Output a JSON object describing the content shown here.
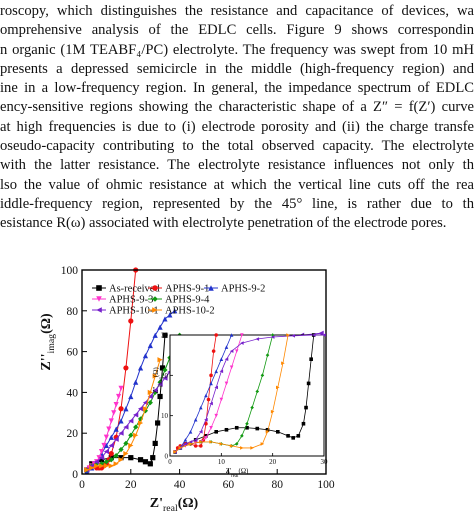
{
  "paragraph": {
    "lines": [
      "roscopy, which distinguishes the resistance and capacitance of devices, wa",
      "omprehensive analysis of the EDLC cells. Figure 9 shows correspondin",
      "n organic (1M TEABF₄/PC) electrolyte. The frequency was swept from 10 mH",
      "presents a depressed semicircle in the middle (high-frequency region) and",
      "ine in a low-frequency region. In general, the impedance spectrum of EDLC",
      "ency-sensitive regions showing the characteristic shape of a Z″ = f(Z′) curve",
      "at high frequencies is due to (i) electrode porosity and (ii) the charge transfe",
      "oseudo-capacity contributing to the total observed capacity. The electrolyte",
      "with the latter resistance. The electrolyte resistance influences not only th",
      "lso the value of ohmic resistance at which the vertical line cuts off the rea",
      "iddle-frequency region, represented by the 45° line, is rather due to th",
      "esistance R(ω) associated with electrolyte penetration of the electrode pores."
    ]
  },
  "chart_data": [
    {
      "type": "scatter",
      "xlabel": "Z'real(Ω)",
      "ylabel": "Z''imag(Ω)",
      "xlim": [
        0,
        100
      ],
      "ylim": [
        0,
        100
      ],
      "x_ticks": [
        "0",
        "20",
        "40",
        "60",
        "80",
        "100"
      ],
      "y_ticks": [
        "0",
        "20",
        "40",
        "60",
        "80",
        "100"
      ],
      "legend_placement": "top-left",
      "series": [
        {
          "name": "As-received",
          "color": "#000000",
          "marker": "square",
          "x": [
            2,
            4,
            8,
            12,
            16,
            20,
            24,
            26,
            28,
            29,
            30,
            31,
            32,
            33,
            34
          ],
          "y": [
            2,
            5,
            7,
            8,
            8,
            8,
            7,
            6,
            5,
            8,
            15,
            25,
            38,
            52,
            68
          ]
        },
        {
          "name": "APHS-9-1",
          "color": "#ee1111",
          "marker": "circle",
          "x": [
            2,
            3,
            4,
            5,
            6,
            7,
            8,
            9,
            10,
            11,
            12,
            14,
            16,
            18,
            20,
            22
          ],
          "y": [
            2,
            3,
            4,
            4,
            3,
            3,
            3,
            4,
            5,
            7,
            10,
            18,
            32,
            52,
            75,
            100
          ]
        },
        {
          "name": "APHS-9-2",
          "color": "#2233cc",
          "marker": "triangle-up",
          "x": [
            2,
            4,
            6,
            8,
            10,
            12,
            14,
            16,
            18,
            20,
            22,
            24,
            26,
            28,
            30,
            32,
            34,
            36,
            38
          ],
          "y": [
            1,
            3,
            6,
            10,
            14,
            18,
            22,
            26,
            32,
            38,
            45,
            52,
            58,
            63,
            68,
            72,
            76,
            78,
            80
          ]
        },
        {
          "name": "APHS-9-3",
          "color": "#ff33cc",
          "marker": "triangle-down",
          "x": [
            2,
            3,
            4,
            5,
            6,
            7,
            8,
            9,
            10,
            11,
            12,
            13,
            14,
            15,
            16
          ],
          "y": [
            2,
            3,
            4,
            5,
            6,
            8,
            11,
            14,
            18,
            22,
            26,
            30,
            34,
            38,
            42
          ]
        },
        {
          "name": "APHS-9-4",
          "color": "#119911",
          "marker": "diamond",
          "x": [
            2,
            4,
            6,
            8,
            10,
            12,
            14,
            16,
            18,
            20,
            22,
            24,
            26,
            28,
            30,
            32,
            34,
            36,
            38,
            40
          ],
          "y": [
            2,
            4,
            5,
            5,
            6,
            7,
            9,
            12,
            15,
            19,
            23,
            27,
            31,
            35,
            40,
            45,
            51,
            57,
            63,
            68
          ]
        },
        {
          "name": "APHS-10-1",
          "color": "#7722cc",
          "marker": "triangle-left",
          "x": [
            2,
            4,
            6,
            8,
            10,
            12,
            14,
            16,
            18,
            20,
            22,
            24,
            26,
            28,
            30,
            32,
            34,
            36,
            40,
            50,
            60,
            70,
            80,
            90,
            98
          ],
          "y": [
            2,
            4,
            6,
            8,
            11,
            14,
            17,
            20,
            23,
            26,
            29,
            32,
            35,
            38,
            41,
            44,
            47,
            50,
            53,
            58,
            62,
            65,
            67,
            68,
            69
          ]
        },
        {
          "name": "APHS-10-2",
          "color": "#ff8800",
          "marker": "triangle-right",
          "x": [
            2,
            4,
            6,
            8,
            10,
            12,
            14,
            16,
            18,
            20,
            22,
            24,
            26,
            28,
            30,
            32
          ],
          "y": [
            2,
            3,
            4,
            4,
            4,
            4,
            5,
            7,
            10,
            14,
            19,
            25,
            32,
            40,
            48,
            56
          ]
        }
      ]
    },
    {
      "type": "scatter",
      "inset": true,
      "xlabel": "Z'real(Ω)",
      "ylabel": "Z''imag(Ω)",
      "xlim": [
        0,
        30
      ],
      "ylim": [
        0,
        30
      ],
      "x_ticks": [
        "0",
        "10",
        "20",
        "30"
      ],
      "y_ticks": [
        "0",
        "10",
        "20",
        "30"
      ],
      "series": [
        {
          "name": "As-received",
          "color": "#000000",
          "x": [
            1,
            2,
            3,
            5,
            7,
            9,
            11,
            13,
            15,
            17,
            19,
            21,
            23,
            24,
            25,
            26,
            26.5,
            27,
            27.5,
            28
          ],
          "y": [
            1,
            2,
            3,
            4,
            5,
            6,
            6.5,
            7,
            7,
            6.8,
            6.5,
            6,
            5,
            4.5,
            5,
            8,
            12,
            18,
            24,
            30
          ]
        },
        {
          "name": "APHS-9-1",
          "color": "#ee1111",
          "x": [
            1,
            1.5,
            2,
            3,
            4,
            5,
            6,
            6.5,
            7,
            7.5,
            8,
            8.5,
            9
          ],
          "y": [
            1,
            2,
            2.5,
            3,
            3,
            2.5,
            2.5,
            4,
            8,
            14,
            20,
            26,
            30
          ]
        },
        {
          "name": "APHS-9-2",
          "color": "#2233cc",
          "x": [
            1,
            2,
            3,
            4,
            5,
            6,
            7,
            8,
            9,
            10,
            11,
            12
          ],
          "y": [
            1,
            2,
            4,
            6,
            9,
            12,
            15,
            18,
            21,
            24,
            27,
            30
          ]
        },
        {
          "name": "APHS-9-3",
          "color": "#ff33cc",
          "x": [
            1,
            2,
            3,
            4,
            5,
            6,
            7,
            8,
            9,
            10,
            11,
            12,
            13,
            14
          ],
          "y": [
            1,
            2,
            2.5,
            3,
            3.2,
            3.5,
            4.5,
            7,
            10,
            14,
            18,
            22,
            26,
            30
          ]
        },
        {
          "name": "APHS-9-4",
          "color": "#119911",
          "x": [
            1,
            2,
            4,
            6,
            8,
            10,
            12,
            13,
            14,
            15,
            16,
            17,
            18,
            19,
            20
          ],
          "y": [
            1,
            2,
            3,
            3.5,
            3.5,
            3,
            2.5,
            3,
            5,
            8,
            12,
            16,
            20,
            25,
            30
          ]
        },
        {
          "name": "APHS-10-1",
          "color": "#7722cc",
          "x": [
            1,
            2,
            3,
            4,
            5,
            6,
            7,
            8,
            9,
            10,
            11,
            12,
            14,
            17,
            20,
            24,
            28,
            30
          ],
          "y": [
            1,
            2,
            3,
            3.5,
            4,
            6,
            9,
            13,
            17,
            21,
            24,
            26,
            28,
            29,
            29.5,
            29.8,
            30,
            30
          ]
        },
        {
          "name": "APHS-10-2",
          "color": "#ff8800",
          "x": [
            1,
            2,
            4,
            6,
            8,
            10,
            12,
            14,
            16,
            18,
            19,
            20,
            21,
            22,
            23
          ],
          "y": [
            1,
            2,
            3,
            3.5,
            3.5,
            3,
            2.5,
            2,
            2,
            3,
            6,
            11,
            17,
            23,
            30
          ]
        }
      ]
    }
  ]
}
